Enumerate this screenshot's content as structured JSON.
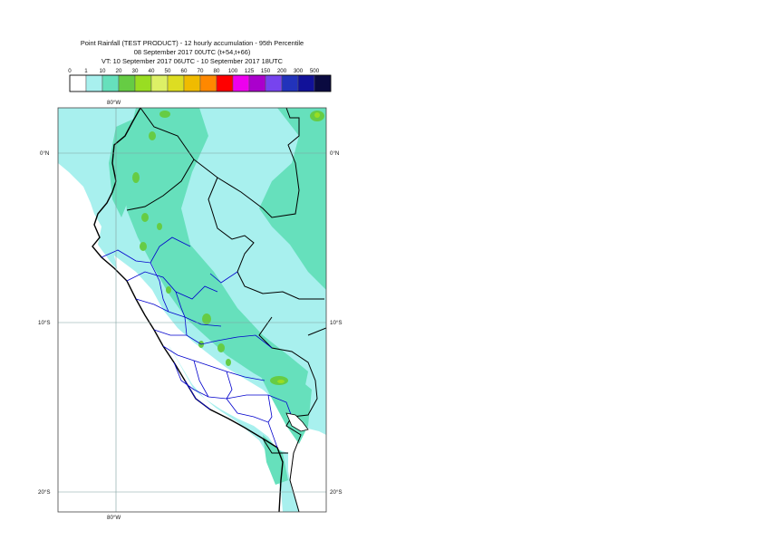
{
  "title": {
    "line1": "Point Rainfall (TEST PRODUCT) - 12 hourly accumulation - 95th Percentile",
    "line2": "08 September 2017 00UTC (t+54,t+66)",
    "line3": "VT: 10 September 2017 06UTC - 10 September 2017 18UTC"
  },
  "legend": {
    "labels": [
      "0",
      "1",
      "10",
      "20",
      "30",
      "40",
      "50",
      "60",
      "70",
      "80",
      "100",
      "125",
      "150",
      "200",
      "300",
      "500"
    ],
    "colors": [
      "#ffffff",
      "#a8f0ee",
      "#66e0bc",
      "#66cc44",
      "#99dd22",
      "#ddf066",
      "#dddd22",
      "#f0bb00",
      "#ff8800",
      "#ff0000",
      "#ee00ee",
      "#aa00cc",
      "#7744ee",
      "#2233bb",
      "#111199",
      "#0a0a40"
    ]
  },
  "map": {
    "ocean_color": "#a8f0ee",
    "land_color": "#a8f0ee",
    "dry_color": "#ffffff",
    "moderate_color": "#66e0bc",
    "heavy_color": "#66cc44",
    "border_color": "#000000",
    "region_color": "#0000cc",
    "grid_color": "#7f9f9f",
    "lat_labels": [
      "0°N",
      "10°S",
      "20°S"
    ],
    "lon_labels": [
      "80°W"
    ]
  }
}
